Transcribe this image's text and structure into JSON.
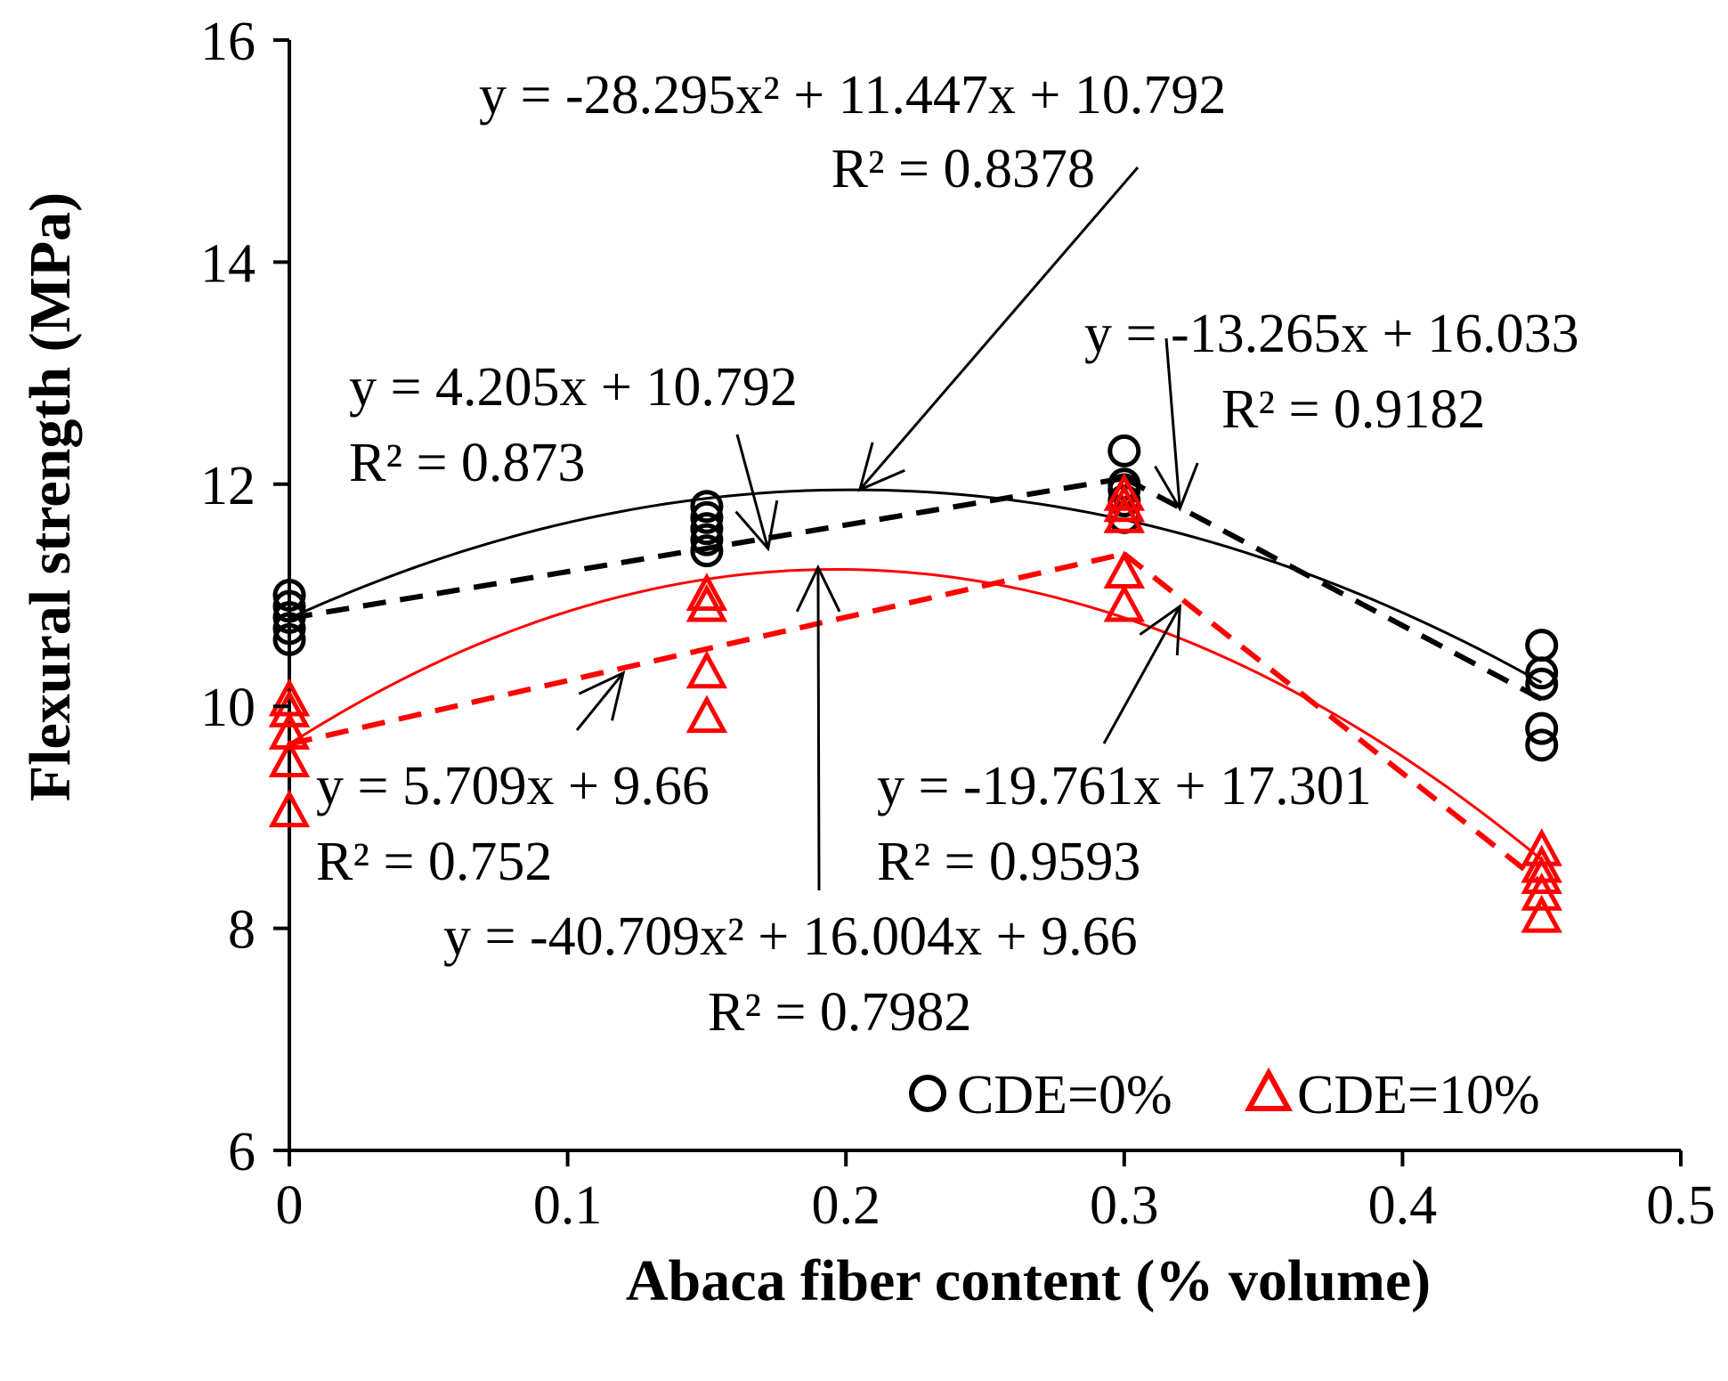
{
  "chart_data": {
    "type": "scatter",
    "xlabel": "Abaca fiber content (% volume)",
    "ylabel": "Flexural strength (MPa)",
    "xlim": [
      0,
      0.5
    ],
    "ylim": [
      6,
      16
    ],
    "x_ticks": [
      "0",
      "0.1",
      "0.2",
      "0.3",
      "0.4",
      "0.5"
    ],
    "y_ticks": [
      "6",
      "8",
      "10",
      "12",
      "14",
      "16"
    ],
    "grid": false,
    "legend_position": "bottom-right",
    "series": [
      {
        "name": "CDE=0%",
        "marker": "circle",
        "color": "#000000",
        "points": [
          [
            0,
            10.6
          ],
          [
            0,
            10.7
          ],
          [
            0,
            10.8
          ],
          [
            0,
            10.9
          ],
          [
            0,
            11.0
          ],
          [
            0.15,
            11.4
          ],
          [
            0.15,
            11.5
          ],
          [
            0.15,
            11.6
          ],
          [
            0.15,
            11.7
          ],
          [
            0.15,
            11.8
          ],
          [
            0.3,
            11.7
          ],
          [
            0.3,
            11.85
          ],
          [
            0.3,
            11.95
          ],
          [
            0.3,
            12.0
          ],
          [
            0.3,
            12.3
          ],
          [
            0.45,
            9.65
          ],
          [
            0.45,
            9.8
          ],
          [
            0.45,
            10.2
          ],
          [
            0.45,
            10.3
          ],
          [
            0.45,
            10.55
          ]
        ],
        "fits": [
          {
            "kind": "quadratic",
            "coef": [
              -28.295,
              11.447,
              10.792
            ],
            "x_range": [
              0,
              0.45
            ],
            "style": "solid",
            "equation": "y = -28.295x² + 11.447x + 10.792",
            "r2": "R² = 0.8378"
          },
          {
            "kind": "linear",
            "coef": [
              4.205,
              10.792
            ],
            "x_range": [
              0,
              0.3
            ],
            "style": "dashed",
            "equation": "y = 4.205x + 10.792",
            "r2": "R² = 0.873"
          },
          {
            "kind": "linear",
            "coef": [
              -13.265,
              16.033
            ],
            "x_range": [
              0.3,
              0.45
            ],
            "style": "dashed",
            "equation": "y = -13.265x + 16.033",
            "r2": "R² = 0.9182"
          }
        ]
      },
      {
        "name": "CDE=10%",
        "marker": "triangle",
        "color": "#ff0000",
        "points": [
          [
            0,
            9.05
          ],
          [
            0,
            9.5
          ],
          [
            0,
            9.75
          ],
          [
            0,
            9.95
          ],
          [
            0,
            10.05
          ],
          [
            0.15,
            9.9
          ],
          [
            0.15,
            10.3
          ],
          [
            0.15,
            10.9
          ],
          [
            0.15,
            11.0
          ],
          [
            0.3,
            10.9
          ],
          [
            0.3,
            11.2
          ],
          [
            0.3,
            11.7
          ],
          [
            0.3,
            11.8
          ],
          [
            0.3,
            11.9
          ],
          [
            0.45,
            8.1
          ],
          [
            0.45,
            8.3
          ],
          [
            0.45,
            8.45
          ],
          [
            0.45,
            8.55
          ],
          [
            0.45,
            8.7
          ]
        ],
        "fits": [
          {
            "kind": "quadratic",
            "coef": [
              -40.709,
              16.004,
              9.66
            ],
            "x_range": [
              0,
              0.45
            ],
            "style": "solid",
            "equation": "y = -40.709x² + 16.004x + 9.66",
            "r2": "R² = 0.7982"
          },
          {
            "kind": "linear",
            "coef": [
              5.709,
              9.66
            ],
            "x_range": [
              0,
              0.3
            ],
            "style": "dashed",
            "equation": "y = 5.709x + 9.66",
            "r2": "R² = 0.752"
          },
          {
            "kind": "linear",
            "coef": [
              -19.761,
              17.301
            ],
            "x_range": [
              0.3,
              0.45
            ],
            "style": "dashed",
            "equation": "y = -19.761x + 17.301",
            "r2": "R² = 0.9593"
          }
        ]
      }
    ],
    "annotations": [
      {
        "series": 0,
        "fit": 0,
        "lines": [
          "y = -28.295x² + 11.447x + 10.792",
          "R² = 0.8378"
        ],
        "arrow_target": [
          0.205,
          11.95
        ]
      },
      {
        "series": 0,
        "fit": 1,
        "lines": [
          "y = 4.205x + 10.792",
          "R² = 0.873"
        ],
        "arrow_target": [
          0.172,
          11.42
        ]
      },
      {
        "series": 0,
        "fit": 2,
        "lines": [
          "y = -13.265x + 16.033",
          "R² = 0.9182"
        ],
        "arrow_target": [
          0.32,
          11.78
        ]
      },
      {
        "series": 1,
        "fit": 1,
        "lines": [
          "y = 5.709x + 9.66",
          "R² = 0.752"
        ],
        "arrow_target": [
          0.12,
          10.3
        ]
      },
      {
        "series": 1,
        "fit": 2,
        "lines": [
          "y = -19.761x + 17.301",
          "R² = 0.9593"
        ],
        "arrow_target": [
          0.32,
          10.9
        ]
      },
      {
        "series": 1,
        "fit": 0,
        "lines": [
          "y = -40.709x² + 16.004x + 9.66",
          "R² = 0.7982"
        ],
        "arrow_target": [
          0.19,
          11.25
        ]
      }
    ]
  }
}
